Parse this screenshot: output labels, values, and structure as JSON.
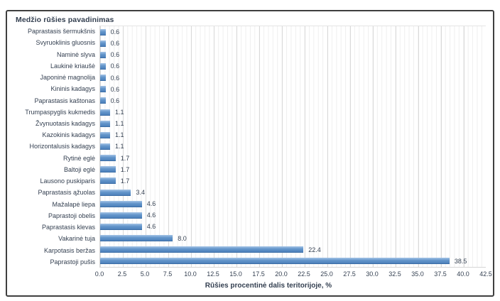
{
  "chart_data": {
    "type": "bar",
    "orientation": "horizontal",
    "title": "Medžio rūšies pavadinimas",
    "xlabel": "Rūšies procentinė dalis teritorijoje, %",
    "categories": [
      "Paprastasis šermukšnis",
      "Svyruoklinis gluosnis",
      "Naminė slyva",
      "Laukinė kriaušė",
      "Japoninė magnolija",
      "Kininis kadagys",
      "Paprastasis kaštonas",
      "Trumpaspyglis kukmedis",
      "Žvynuotasis kadagys",
      "Kazokinis kadagys",
      "Horizontalusis kadagys",
      "Rytinė eglė",
      "Baltoji eglė",
      "Lausono puskiparis",
      "Paprastasis ąžuolas",
      "Mažalapė liepa",
      "Paprastoji obelis",
      "Paprastasis klevas",
      "Vakarinė tuja",
      "Karpotasis beržas",
      "Paprastoji pušis"
    ],
    "values": [
      0.6,
      0.6,
      0.6,
      0.6,
      0.6,
      0.6,
      0.6,
      1.1,
      1.1,
      1.1,
      1.1,
      1.7,
      1.7,
      1.7,
      3.4,
      4.6,
      4.6,
      4.6,
      8.0,
      22.4,
      38.5
    ],
    "value_labels": [
      "0.6",
      "0.6",
      "0.6",
      "0.6",
      "0.6",
      "0.6",
      "0.6",
      "1.1",
      "1.1",
      "1.1",
      "1.1",
      "1.7",
      "1.7",
      "1.7",
      "3.4",
      "4.6",
      "4.6",
      "4.6",
      "8.0",
      "22.4",
      "38.5"
    ],
    "x_ticks": [
      "0.0",
      "2.5",
      "5.0",
      "7.5",
      "10.0",
      "12.5",
      "15.0",
      "17.5",
      "20.0",
      "22.5",
      "25.0",
      "27.5",
      "30.0",
      "32.5",
      "35.0",
      "37.5",
      "40.0",
      "42.5"
    ],
    "xlim": [
      0,
      42.5
    ],
    "grid": {
      "minor_step": 0.5,
      "major_step": 2.5,
      "visible": true
    },
    "legend": null,
    "colors": {
      "bar_top": "#a5c4e6",
      "bar_mid": "#6496cb",
      "bar_bottom": "#4d81bb",
      "bar_edge": "#3c6ea6",
      "text": "#333f50",
      "major_grid": "#d9d9d9",
      "minor_grid": "#efefef",
      "frame_border": "#3f3f3f",
      "axis_line": "#d6d6d6"
    }
  }
}
